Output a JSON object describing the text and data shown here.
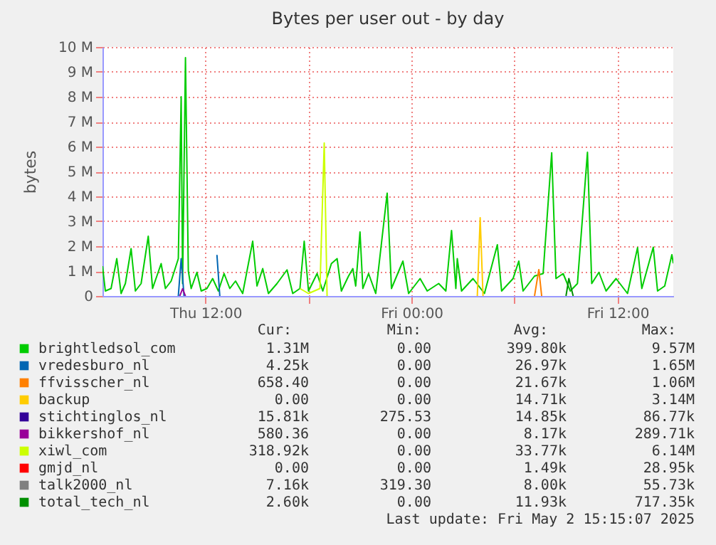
{
  "chart_data": {
    "type": "line",
    "title": "Bytes per user out - by day",
    "ylabel": "bytes",
    "xlim": [
      "2025-05-01T06:00",
      "2025-05-02T15:15"
    ],
    "xticks": [
      {
        "value": "2025-05-01T12:00",
        "label": "Thu 12:00"
      },
      {
        "value": "2025-05-01T18:00",
        "label": null
      },
      {
        "value": "2025-05-02T00:00",
        "label": "Fri 00:00"
      },
      {
        "value": "2025-05-02T06:00",
        "label": null
      },
      {
        "value": "2025-05-02T12:00",
        "label": "Fri 12:00"
      }
    ],
    "ylim": [
      0,
      10
    ],
    "yticks": [
      0,
      {
        "value": 1,
        "label": "1 M"
      },
      {
        "value": 2,
        "label": "2 M"
      },
      {
        "value": 3,
        "label": "3 M"
      },
      {
        "value": 4,
        "label": "4 M"
      },
      {
        "value": 5,
        "label": "5 M"
      },
      {
        "value": 6,
        "label": "6 M"
      },
      {
        "value": 7,
        "label": "7 M"
      },
      {
        "value": 8,
        "label": "8 M"
      },
      {
        "value": 9,
        "label": "9 M"
      },
      {
        "value": 10,
        "label": "10 M"
      }
    ],
    "grid": true,
    "legend": "bottom",
    "line_style": "solid",
    "marker": "none",
    "series": [
      {
        "name": "brightledsol_com",
        "color": "#00cc00",
        "x": [
          "2025-05-01T06:00",
          "2025-05-01T06:10",
          "2025-05-01T06:30",
          "2025-05-01T06:50",
          "2025-05-01T07:05",
          "2025-05-01T07:20",
          "2025-05-01T07:40",
          "2025-05-01T07:55",
          "2025-05-01T08:15",
          "2025-05-01T08:40",
          "2025-05-01T08:55",
          "2025-05-01T09:10",
          "2025-05-01T09:25",
          "2025-05-01T09:40",
          "2025-05-01T10:00",
          "2025-05-01T10:25",
          "2025-05-01T10:35",
          "2025-05-01T10:40",
          "2025-05-01T10:50",
          "2025-05-01T11:00",
          "2025-05-01T11:10",
          "2025-05-01T11:30",
          "2025-05-01T11:45",
          "2025-05-01T12:05",
          "2025-05-01T12:25",
          "2025-05-01T12:45",
          "2025-05-01T13:05",
          "2025-05-01T13:25",
          "2025-05-01T13:45",
          "2025-05-01T14:10",
          "2025-05-01T14:45",
          "2025-05-01T15:00",
          "2025-05-01T15:20",
          "2025-05-01T15:40",
          "2025-05-01T16:10",
          "2025-05-01T16:45",
          "2025-05-01T17:05",
          "2025-05-01T17:30",
          "2025-05-01T17:45",
          "2025-05-01T18:00",
          "2025-05-01T18:30",
          "2025-05-01T18:50",
          "2025-05-01T19:20",
          "2025-05-01T19:40",
          "2025-05-01T19:55",
          "2025-05-01T20:20",
          "2025-05-01T20:35",
          "2025-05-01T20:45",
          "2025-05-01T21:00",
          "2025-05-01T21:10",
          "2025-05-01T21:30",
          "2025-05-01T21:55",
          "2025-05-01T22:35",
          "2025-05-01T22:50",
          "2025-05-01T23:30",
          "2025-05-01T23:50",
          "2025-05-02T00:30",
          "2025-05-02T00:55",
          "2025-05-02T01:35",
          "2025-05-02T02:00",
          "2025-05-02T02:20",
          "2025-05-02T02:35",
          "2025-05-02T02:40",
          "2025-05-02T02:55",
          "2025-05-02T03:35",
          "2025-05-02T04:15",
          "2025-05-02T05:00",
          "2025-05-02T05:15",
          "2025-05-02T05:55",
          "2025-05-02T06:15",
          "2025-05-02T06:30",
          "2025-05-02T07:10",
          "2025-05-02T07:40",
          "2025-05-02T08:10",
          "2025-05-02T08:25",
          "2025-05-02T08:50",
          "2025-05-02T09:15",
          "2025-05-02T09:40",
          "2025-05-02T10:15",
          "2025-05-02T10:30",
          "2025-05-02T10:55",
          "2025-05-02T11:20",
          "2025-05-02T11:55",
          "2025-05-02T12:35",
          "2025-05-02T13:10",
          "2025-05-02T13:25",
          "2025-05-02T14:05",
          "2025-05-02T14:20",
          "2025-05-02T14:45",
          "2025-05-02T15:10",
          "2025-05-02T15:15"
        ],
        "values": [
          1.2,
          0.2,
          0.3,
          1.5,
          0.1,
          0.5,
          1.9,
          0.2,
          0.5,
          2.4,
          0.3,
          0.8,
          1.3,
          0.3,
          0.6,
          1.5,
          8.0,
          0.5,
          9.57,
          1.0,
          0.3,
          0.95,
          0.2,
          0.3,
          0.7,
          0.2,
          0.9,
          0.3,
          0.6,
          0.1,
          2.2,
          0.4,
          1.1,
          0.1,
          0.5,
          1.05,
          0.1,
          0.3,
          2.2,
          0.2,
          0.9,
          0.2,
          1.3,
          1.5,
          0.2,
          0.8,
          1.1,
          0.4,
          2.57,
          0.3,
          0.9,
          0.1,
          4.13,
          0.3,
          1.4,
          0.1,
          0.7,
          0.2,
          0.5,
          0.2,
          2.63,
          0.3,
          1.5,
          0.2,
          0.7,
          0.1,
          2.06,
          0.2,
          0.7,
          1.4,
          0.2,
          0.8,
          0.9,
          5.75,
          0.7,
          0.9,
          0.2,
          0.5,
          5.77,
          0.5,
          0.95,
          0.2,
          0.7,
          0.1,
          1.94,
          0.3,
          1.96,
          0.2,
          0.4,
          1.66,
          1.31
        ]
      },
      {
        "name": "vredesburo_nl",
        "color": "#0066b3",
        "x": [
          "2025-05-01T10:25",
          "2025-05-01T10:35",
          "2025-05-01T10:45",
          "2025-05-01T12:25",
          "2025-05-01T12:40",
          "2025-05-01T12:50"
        ],
        "values": [
          0,
          1.5,
          0,
          null,
          1.65,
          0
        ]
      },
      {
        "name": "ffvisscher_nl",
        "color": "#ff8000",
        "x": [
          "2025-05-02T07:10",
          "2025-05-02T07:25",
          "2025-05-02T07:35"
        ],
        "values": [
          0,
          1.06,
          0
        ]
      },
      {
        "name": "backup",
        "color": "#ffcc00",
        "x": [
          "2025-05-02T03:50",
          "2025-05-02T04:00",
          "2025-05-02T04:10"
        ],
        "values": [
          0,
          3.14,
          0
        ]
      },
      {
        "name": "stichtinglos_nl",
        "color": "#330099"
      },
      {
        "name": "bikkershof_nl",
        "color": "#990099",
        "x": [
          "2025-05-01T10:30",
          "2025-05-01T10:40",
          "2025-05-01T10:50"
        ],
        "values": [
          0,
          0.29,
          0
        ]
      },
      {
        "name": "xiwl_com",
        "color": "#ccff00",
        "x": [
          "2025-05-01T17:30",
          "2025-05-01T18:00",
          "2025-05-01T18:40",
          "2025-05-01T18:55",
          "2025-05-01T19:05"
        ],
        "values": [
          0.3,
          0.1,
          0.3,
          6.14,
          0
        ]
      },
      {
        "name": "gmjd_nl",
        "color": "#ff0000"
      },
      {
        "name": "talk2000_nl",
        "color": "#808080"
      },
      {
        "name": "total_tech_nl",
        "color": "#008f00",
        "x": [
          "2025-05-02T09:00",
          "2025-05-02T09:10",
          "2025-05-02T09:25"
        ],
        "values": [
          0,
          0.7,
          0
        ]
      }
    ],
    "annotations": [
      "Cur:",
      "Min:",
      "Avg:",
      "Max:",
      "1.31M",
      "0.00",
      "399.80k",
      "9.57M",
      "4.25k",
      "0.00",
      "26.97k",
      "1.65M",
      "658.40",
      "0.00",
      "21.67k",
      "1.06M",
      "0.00",
      "0.00",
      "14.71k",
      "3.14M",
      "15.81k",
      "275.53",
      "14.85k",
      "86.77k",
      "580.36",
      "0.00",
      "8.17k",
      "289.71k",
      "318.92k",
      "0.00",
      "33.77k",
      "6.14M",
      "0.00",
      "0.00",
      "1.49k",
      "28.95k",
      "7.16k",
      "319.30",
      "8.00k",
      "55.73k",
      "2.60k",
      "0.00",
      "11.93k",
      "717.35k",
      "Last update: Fri May  2 15:15:07 2025"
    ]
  }
}
